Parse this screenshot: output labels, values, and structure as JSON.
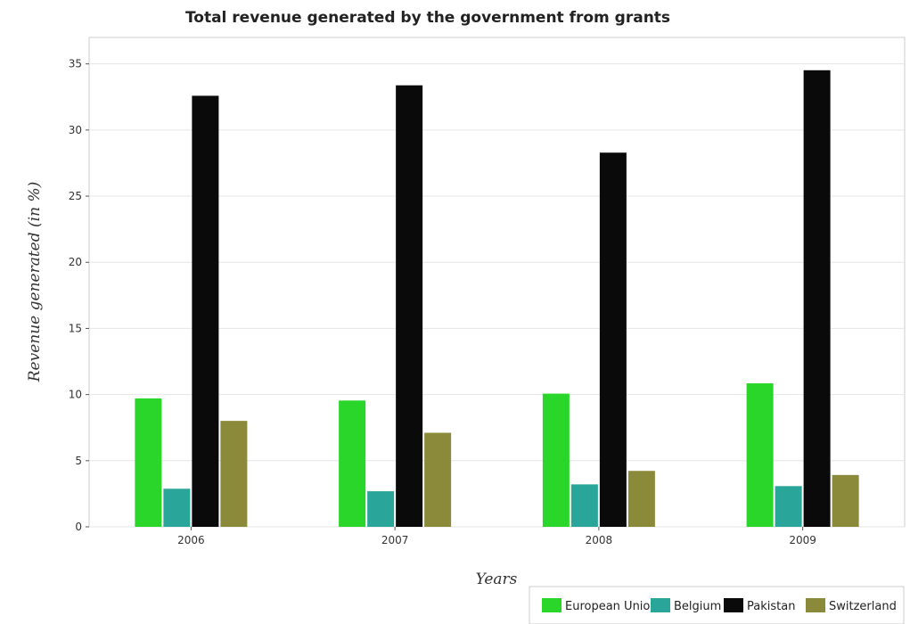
{
  "chart_data": {
    "type": "bar",
    "title": "Total revenue generated by the government from grants",
    "xlabel": "Years",
    "ylabel": "Revenue generated (in %)",
    "categories": [
      "2006",
      "2007",
      "2008",
      "2009"
    ],
    "ylim": [
      0,
      37
    ],
    "yticks": [
      0,
      5,
      10,
      15,
      20,
      25,
      30,
      35
    ],
    "grid": true,
    "legend_position": "bottom-right",
    "series": [
      {
        "name": "European Union",
        "color": "#2bd62b",
        "values": [
          9.71,
          9.55,
          10.07,
          10.85
        ]
      },
      {
        "name": "Belgium",
        "color": "#2aa59a",
        "values": [
          2.88,
          2.69,
          3.21,
          3.08
        ]
      },
      {
        "name": "Pakistan",
        "color": "#0a0a0a",
        "values": [
          32.59,
          33.38,
          28.29,
          34.52
        ]
      },
      {
        "name": "Switzerland",
        "color": "#8a8a3a",
        "values": [
          8.01,
          7.11,
          4.23,
          3.92
        ]
      }
    ]
  }
}
